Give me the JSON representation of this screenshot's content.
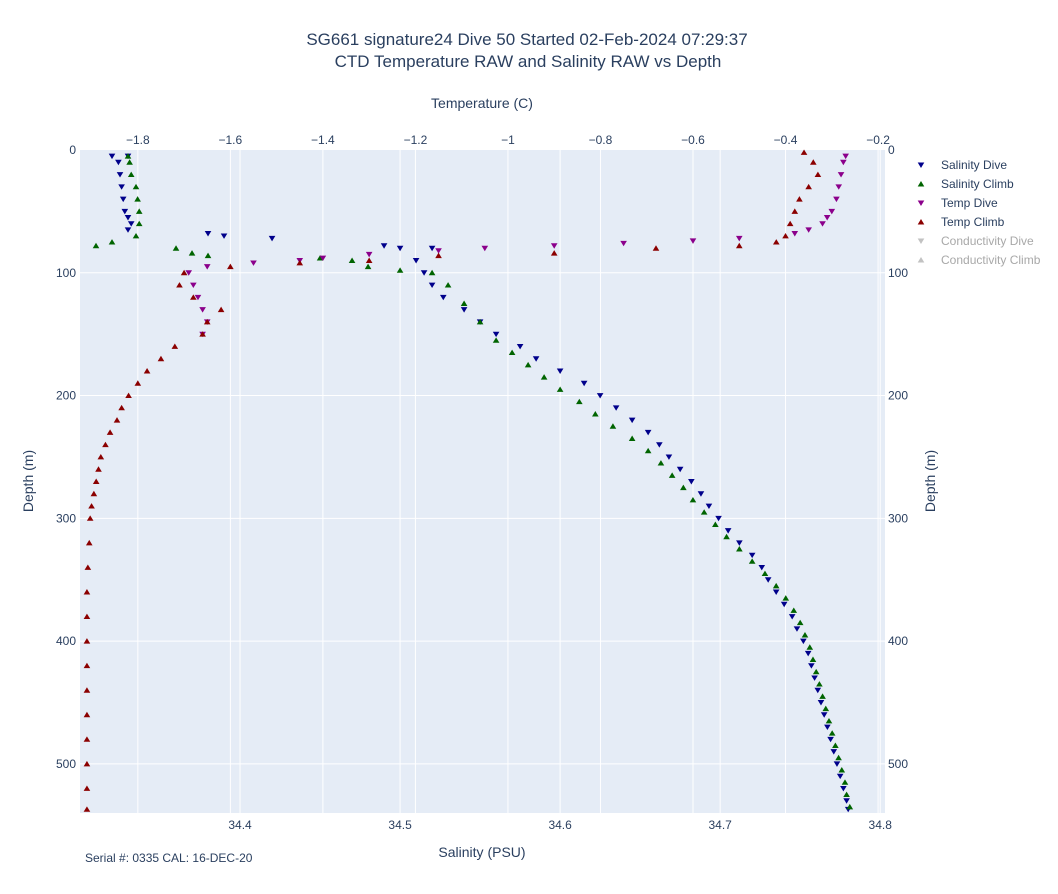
{
  "chart_data": {
    "type": "scatter",
    "title_line1": "SG661 signature24 Dive 50 Started 02-Feb-2024 07:29:37",
    "title_line2": "CTD Temperature RAW and Salinity RAW vs Depth",
    "xlabel_top": "Temperature (C)",
    "xlabel_bottom": "Salinity (PSU)",
    "ylabel_left": "Depth (m)",
    "ylabel_right": "Depth (m)",
    "xlim_top": [
      -1.925,
      -0.185
    ],
    "xlim_bottom": [
      34.3,
      34.803
    ],
    "ylim": [
      540,
      0
    ],
    "xticks_top": [
      -1.8,
      -1.6,
      -1.4,
      -1.2,
      -1,
      -0.8,
      -0.6,
      -0.4,
      -0.2
    ],
    "xticks_top_labels": [
      "−1.8",
      "−1.6",
      "−1.4",
      "−1.2",
      "−1",
      "−0.8",
      "−0.6",
      "−0.4",
      "−0.2"
    ],
    "xticks_bottom": [
      34.4,
      34.5,
      34.6,
      34.7,
      34.8
    ],
    "xticks_bottom_labels": [
      "34.4",
      "34.5",
      "34.6",
      "34.7",
      "34.8"
    ],
    "yticks": [
      0,
      100,
      200,
      300,
      400,
      500
    ],
    "yticks_labels": [
      "0",
      "100",
      "200",
      "300",
      "400",
      "500"
    ],
    "grid": true,
    "legend_position": "right",
    "footer": "Serial #: 0335  CAL: 16-DEC-20",
    "series": [
      {
        "name": "Salinity Dive",
        "axis": "salinity",
        "marker": "triangle-down",
        "color": "#00008b",
        "visible": true,
        "points": [
          [
            34.32,
            5
          ],
          [
            34.33,
            5
          ],
          [
            34.324,
            10
          ],
          [
            34.325,
            20
          ],
          [
            34.326,
            30
          ],
          [
            34.327,
            40
          ],
          [
            34.328,
            50
          ],
          [
            34.33,
            55
          ],
          [
            34.332,
            60
          ],
          [
            34.33,
            65
          ],
          [
            34.38,
            68
          ],
          [
            34.39,
            70
          ],
          [
            34.42,
            72
          ],
          [
            34.49,
            78
          ],
          [
            34.5,
            80
          ],
          [
            34.52,
            80
          ],
          [
            34.51,
            90
          ],
          [
            34.515,
            100
          ],
          [
            34.52,
            110
          ],
          [
            34.527,
            120
          ],
          [
            34.54,
            130
          ],
          [
            34.55,
            140
          ],
          [
            34.56,
            150
          ],
          [
            34.575,
            160
          ],
          [
            34.585,
            170
          ],
          [
            34.6,
            180
          ],
          [
            34.615,
            190
          ],
          [
            34.625,
            200
          ],
          [
            34.635,
            210
          ],
          [
            34.645,
            220
          ],
          [
            34.655,
            230
          ],
          [
            34.662,
            240
          ],
          [
            34.668,
            250
          ],
          [
            34.675,
            260
          ],
          [
            34.682,
            270
          ],
          [
            34.688,
            280
          ],
          [
            34.693,
            290
          ],
          [
            34.699,
            300
          ],
          [
            34.705,
            310
          ],
          [
            34.712,
            320
          ],
          [
            34.72,
            330
          ],
          [
            34.726,
            340
          ],
          [
            34.73,
            350
          ],
          [
            34.735,
            360
          ],
          [
            34.74,
            370
          ],
          [
            34.745,
            380
          ],
          [
            34.748,
            390
          ],
          [
            34.752,
            400
          ],
          [
            34.755,
            410
          ],
          [
            34.757,
            420
          ],
          [
            34.759,
            430
          ],
          [
            34.761,
            440
          ],
          [
            34.763,
            450
          ],
          [
            34.765,
            460
          ],
          [
            34.767,
            470
          ],
          [
            34.769,
            480
          ],
          [
            34.771,
            490
          ],
          [
            34.773,
            500
          ],
          [
            34.775,
            510
          ],
          [
            34.777,
            520
          ],
          [
            34.779,
            530
          ],
          [
            34.78,
            537
          ]
        ]
      },
      {
        "name": "Salinity Climb",
        "axis": "salinity",
        "marker": "triangle-up",
        "color": "#006400",
        "visible": true,
        "points": [
          [
            34.33,
            5
          ],
          [
            34.331,
            10
          ],
          [
            34.332,
            20
          ],
          [
            34.335,
            30
          ],
          [
            34.336,
            40
          ],
          [
            34.337,
            50
          ],
          [
            34.337,
            60
          ],
          [
            34.335,
            70
          ],
          [
            34.32,
            75
          ],
          [
            34.31,
            78
          ],
          [
            34.36,
            80
          ],
          [
            34.37,
            84
          ],
          [
            34.38,
            86
          ],
          [
            34.45,
            88
          ],
          [
            34.47,
            90
          ],
          [
            34.48,
            95
          ],
          [
            34.5,
            98
          ],
          [
            34.52,
            100
          ],
          [
            34.53,
            110
          ],
          [
            34.54,
            125
          ],
          [
            34.55,
            140
          ],
          [
            34.56,
            155
          ],
          [
            34.57,
            165
          ],
          [
            34.58,
            175
          ],
          [
            34.59,
            185
          ],
          [
            34.6,
            195
          ],
          [
            34.612,
            205
          ],
          [
            34.622,
            215
          ],
          [
            34.633,
            225
          ],
          [
            34.645,
            235
          ],
          [
            34.655,
            245
          ],
          [
            34.663,
            255
          ],
          [
            34.67,
            265
          ],
          [
            34.677,
            275
          ],
          [
            34.683,
            285
          ],
          [
            34.69,
            295
          ],
          [
            34.697,
            305
          ],
          [
            34.704,
            315
          ],
          [
            34.712,
            325
          ],
          [
            34.72,
            335
          ],
          [
            34.728,
            345
          ],
          [
            34.735,
            355
          ],
          [
            34.741,
            365
          ],
          [
            34.746,
            375
          ],
          [
            34.75,
            385
          ],
          [
            34.753,
            395
          ],
          [
            34.756,
            405
          ],
          [
            34.758,
            415
          ],
          [
            34.76,
            425
          ],
          [
            34.762,
            435
          ],
          [
            34.764,
            445
          ],
          [
            34.766,
            455
          ],
          [
            34.768,
            465
          ],
          [
            34.77,
            475
          ],
          [
            34.772,
            485
          ],
          [
            34.774,
            495
          ],
          [
            34.776,
            505
          ],
          [
            34.778,
            515
          ],
          [
            34.779,
            525
          ],
          [
            34.781,
            535
          ]
        ]
      },
      {
        "name": "Temp Dive",
        "axis": "temperature",
        "marker": "triangle-down",
        "color": "#8b008b",
        "visible": true,
        "points": [
          [
            -0.27,
            5
          ],
          [
            -0.275,
            10
          ],
          [
            -0.28,
            20
          ],
          [
            -0.285,
            30
          ],
          [
            -0.29,
            40
          ],
          [
            -0.3,
            50
          ],
          [
            -0.31,
            55
          ],
          [
            -0.32,
            60
          ],
          [
            -0.35,
            65
          ],
          [
            -0.38,
            68
          ],
          [
            -0.5,
            72
          ],
          [
            -0.6,
            74
          ],
          [
            -0.75,
            76
          ],
          [
            -0.9,
            78
          ],
          [
            -1.05,
            80
          ],
          [
            -1.15,
            82
          ],
          [
            -1.3,
            85
          ],
          [
            -1.4,
            88
          ],
          [
            -1.45,
            90
          ],
          [
            -1.55,
            92
          ],
          [
            -1.65,
            95
          ],
          [
            -1.69,
            100
          ],
          [
            -1.68,
            110
          ],
          [
            -1.67,
            120
          ],
          [
            -1.66,
            130
          ],
          [
            -1.65,
            140
          ],
          [
            -1.66,
            150
          ]
        ]
      },
      {
        "name": "Temp Climb",
        "axis": "temperature",
        "marker": "triangle-up",
        "color": "#8b0000",
        "visible": true,
        "points": [
          [
            -0.36,
            2
          ],
          [
            -0.34,
            10
          ],
          [
            -0.33,
            20
          ],
          [
            -0.35,
            30
          ],
          [
            -0.37,
            40
          ],
          [
            -0.38,
            50
          ],
          [
            -0.39,
            60
          ],
          [
            -0.4,
            70
          ],
          [
            -0.42,
            75
          ],
          [
            -0.5,
            78
          ],
          [
            -0.68,
            80
          ],
          [
            -0.9,
            84
          ],
          [
            -1.15,
            86
          ],
          [
            -1.3,
            90
          ],
          [
            -1.45,
            92
          ],
          [
            -1.6,
            95
          ],
          [
            -1.7,
            100
          ],
          [
            -1.71,
            110
          ],
          [
            -1.68,
            120
          ],
          [
            -1.62,
            130
          ],
          [
            -1.65,
            140
          ],
          [
            -1.66,
            150
          ],
          [
            -1.72,
            160
          ],
          [
            -1.75,
            170
          ],
          [
            -1.78,
            180
          ],
          [
            -1.8,
            190
          ],
          [
            -1.82,
            200
          ],
          [
            -1.835,
            210
          ],
          [
            -1.845,
            220
          ],
          [
            -1.86,
            230
          ],
          [
            -1.87,
            240
          ],
          [
            -1.88,
            250
          ],
          [
            -1.885,
            260
          ],
          [
            -1.89,
            270
          ],
          [
            -1.895,
            280
          ],
          [
            -1.9,
            290
          ],
          [
            -1.903,
            300
          ],
          [
            -1.905,
            320
          ],
          [
            -1.908,
            340
          ],
          [
            -1.91,
            360
          ],
          [
            -1.91,
            380
          ],
          [
            -1.91,
            400
          ],
          [
            -1.91,
            420
          ],
          [
            -1.91,
            440
          ],
          [
            -1.91,
            460
          ],
          [
            -1.91,
            480
          ],
          [
            -1.91,
            500
          ],
          [
            -1.91,
            520
          ],
          [
            -1.91,
            537
          ]
        ]
      },
      {
        "name": "Conductivity Dive",
        "axis": "none",
        "marker": "triangle-down",
        "color": "#a8a8a8",
        "visible": false,
        "points": []
      },
      {
        "name": "Conductivity Climb",
        "axis": "none",
        "marker": "triangle-up",
        "color": "#a8a8a8",
        "visible": false,
        "points": []
      }
    ]
  }
}
